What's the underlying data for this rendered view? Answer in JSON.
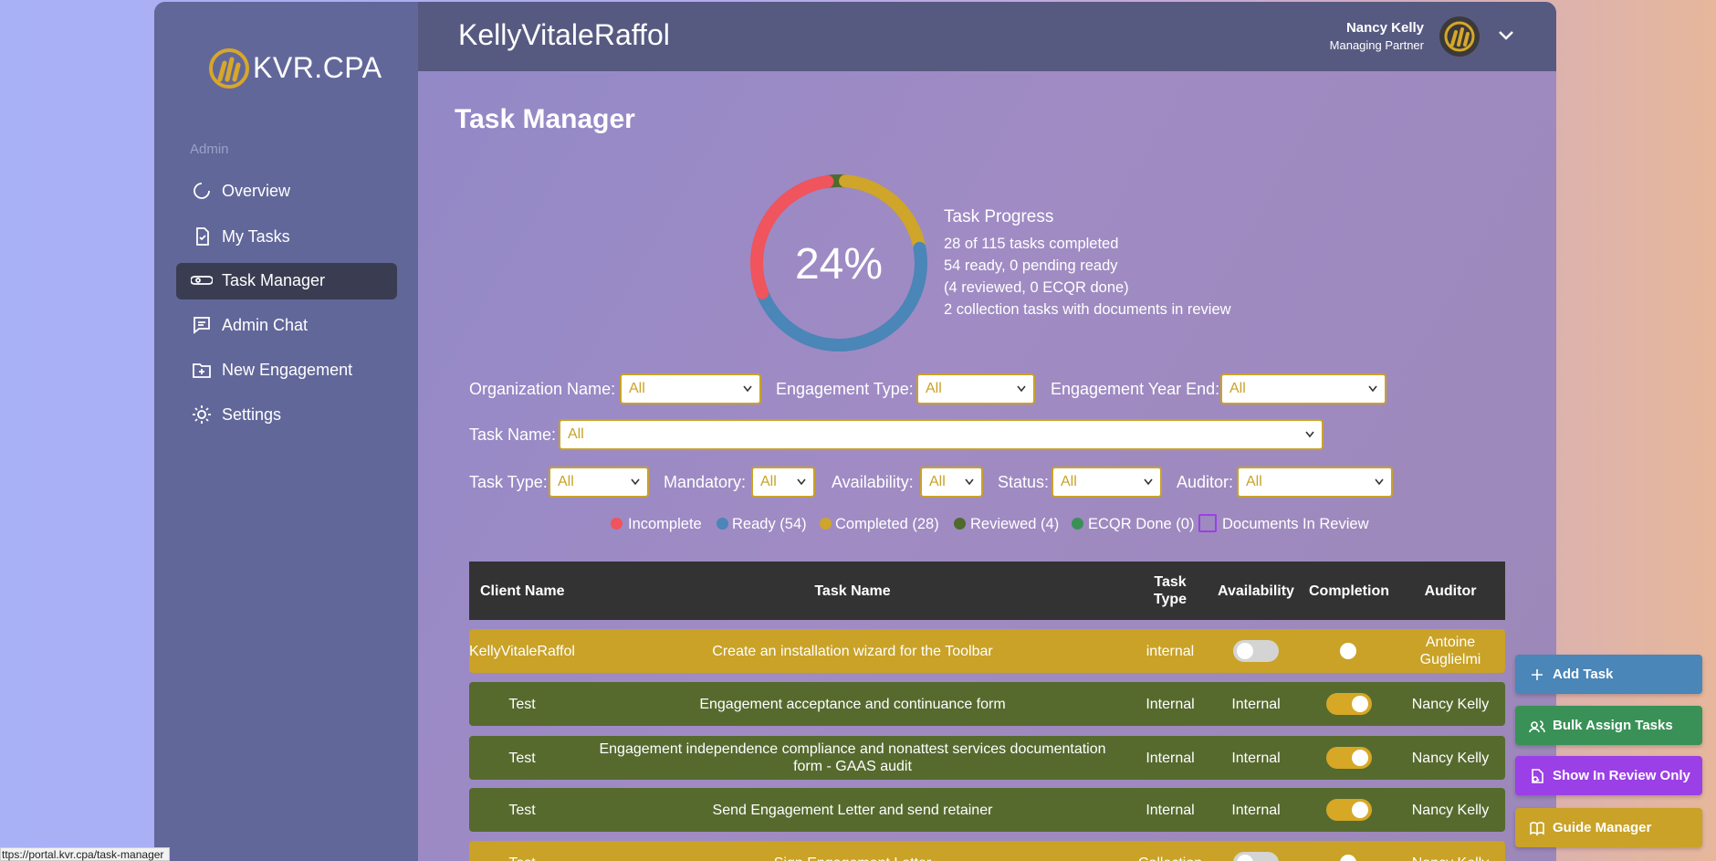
{
  "sidebar": {
    "logo": "KVR.CPA",
    "section": "Admin",
    "nav": [
      "Overview",
      "My Tasks",
      "Task Manager",
      "Admin Chat",
      "New Engagement",
      "Settings"
    ],
    "active": 2
  },
  "header": {
    "title": "KellyVitaleRaffol",
    "user_name": "Nancy Kelly",
    "user_role": "Managing Partner"
  },
  "page_title": "Task Manager",
  "progress": {
    "percent_label": "24%",
    "heading": "Task Progress",
    "lines": [
      "28 of 115 tasks completed",
      "54 ready, 0 pending ready",
      "(4 reviewed, 0 ECQR done)",
      "2 collection tasks with documents in review"
    ],
    "segments": [
      {
        "color": "#4f6a2c",
        "value": 4
      },
      {
        "color": "#cfa52a",
        "value": 24
      },
      {
        "color": "#4a86b8",
        "value": 54
      },
      {
        "color": "#f0545c",
        "value": 33
      }
    ]
  },
  "filters": [
    [
      {
        "label": "Organization Name:",
        "value": "All"
      },
      {
        "label": "Engagement Type:",
        "value": "All"
      },
      {
        "label": "Engagement Year End:",
        "value": "All"
      }
    ],
    [
      {
        "label": "Task Name:",
        "value": "All"
      }
    ],
    [
      {
        "label": "Task Type:",
        "value": "All"
      },
      {
        "label": "Mandatory:",
        "value": "All"
      },
      {
        "label": "Availability:",
        "value": "All"
      },
      {
        "label": "Status:",
        "value": "All"
      },
      {
        "label": "Auditor:",
        "value": "All"
      }
    ]
  ],
  "legend": [
    {
      "label": "Incomplete",
      "color": "#f0545c"
    },
    {
      "label": "Ready (54)",
      "color": "#4a86b8"
    },
    {
      "label": "Completed (28)",
      "color": "#cfa52a"
    },
    {
      "label": "Reviewed (4)",
      "color": "#4f6a2c"
    },
    {
      "label": "ECQR Done (0)",
      "color": "#3a9157"
    },
    {
      "label": "Documents In Review",
      "color": "#9b3fe6",
      "outline": true
    }
  ],
  "table": {
    "columns": [
      "Client Name",
      "Task Name",
      "Task Type",
      "Availability",
      "Completion",
      "Auditor"
    ],
    "rows": [
      {
        "client": "KellyVitaleRaffol",
        "task": "Create an installation wizard for the Toolbar",
        "type": "internal",
        "availability": null,
        "completed": false,
        "auditor": "Antoine Guglielmi",
        "color": "#c9a227"
      },
      {
        "client": "Test",
        "task": "Engagement acceptance and continuance form",
        "type": "Internal",
        "availability": "Internal",
        "completed": true,
        "auditor": "Nancy Kelly",
        "color": "#566a2e"
      },
      {
        "client": "Test",
        "task": "Engagement independence compliance and nonattest services documentation form - GAAS audit",
        "type": "Internal",
        "availability": "Internal",
        "completed": true,
        "auditor": "Nancy Kelly",
        "color": "#566a2e"
      },
      {
        "client": "Test",
        "task": "Send Engagement Letter and send retainer",
        "type": "Internal",
        "availability": "Internal",
        "completed": true,
        "auditor": "Nancy Kelly",
        "color": "#566a2e"
      },
      {
        "client": "Test",
        "task": "Sign Engagement Letter",
        "type": "Collection",
        "availability": null,
        "completed": false,
        "auditor": "Nancy Kelly",
        "color": "#c9a227"
      }
    ]
  },
  "actions": [
    {
      "label": "Add Task",
      "color": "#4a86b8"
    },
    {
      "label": "Bulk Assign Tasks",
      "color": "#3a9157"
    },
    {
      "label": "Show In Review Only",
      "color": "#9b3fe6"
    },
    {
      "label": "Guide Manager",
      "color": "#c9a227"
    }
  ],
  "status_url": "ttps://portal.kvr.cpa/task-manager"
}
